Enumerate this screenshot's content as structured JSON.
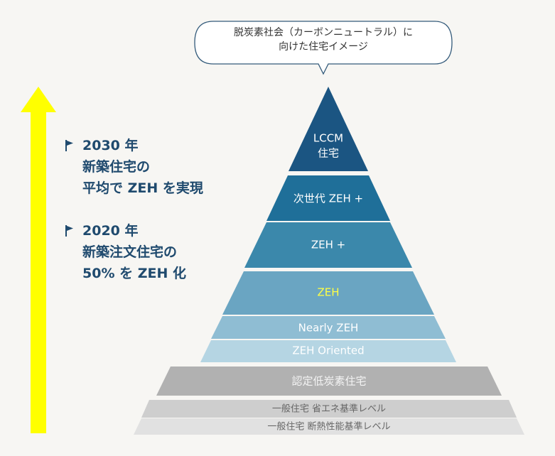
{
  "bubble": {
    "line1": "脱炭素社会（カーボンニュートラル）に",
    "line2": "向けた住宅イメージ"
  },
  "milestones": [
    {
      "lines": [
        "2030 年",
        "新築住宅の",
        "平均で ZEH を実現"
      ]
    },
    {
      "lines": [
        "2020 年",
        "新築注文住宅の",
        "50% を ZEH 化"
      ]
    }
  ],
  "pyramid": {
    "tiers": [
      {
        "label": "LCCM",
        "label2": "住宅",
        "fill": "#1b5582",
        "text_color": "#ffffff"
      },
      {
        "label": "次世代 ZEH +",
        "fill": "#1f6f99",
        "text_color": "#ffffff"
      },
      {
        "label": "ZEH +",
        "fill": "#3b88ab",
        "text_color": "#ffffff"
      },
      {
        "label": "ZEH",
        "fill": "#6aa5c2",
        "text_color": "#ffff44"
      },
      {
        "label": "Nearly ZEH",
        "fill": "#8fbdd3",
        "text_color": "#ffffff"
      },
      {
        "label": "ZEH Oriented",
        "fill": "#b5d5e3",
        "text_color": "#ffffff"
      },
      {
        "label": "認定低炭素住宅",
        "fill": "#b1b1b1",
        "text_color": "#f4f4f4"
      },
      {
        "label": "一般住宅 省エネ基準レベル",
        "fill": "#cecece",
        "text_color": "#666666"
      },
      {
        "label": "一般住宅 断熱性能基準レベル",
        "fill": "#e1e1e1",
        "text_color": "#666666"
      }
    ]
  },
  "colors": {
    "arrow": "#ffff00",
    "background": "#f7f6f3",
    "milestone_text": "#1f4a6e"
  }
}
